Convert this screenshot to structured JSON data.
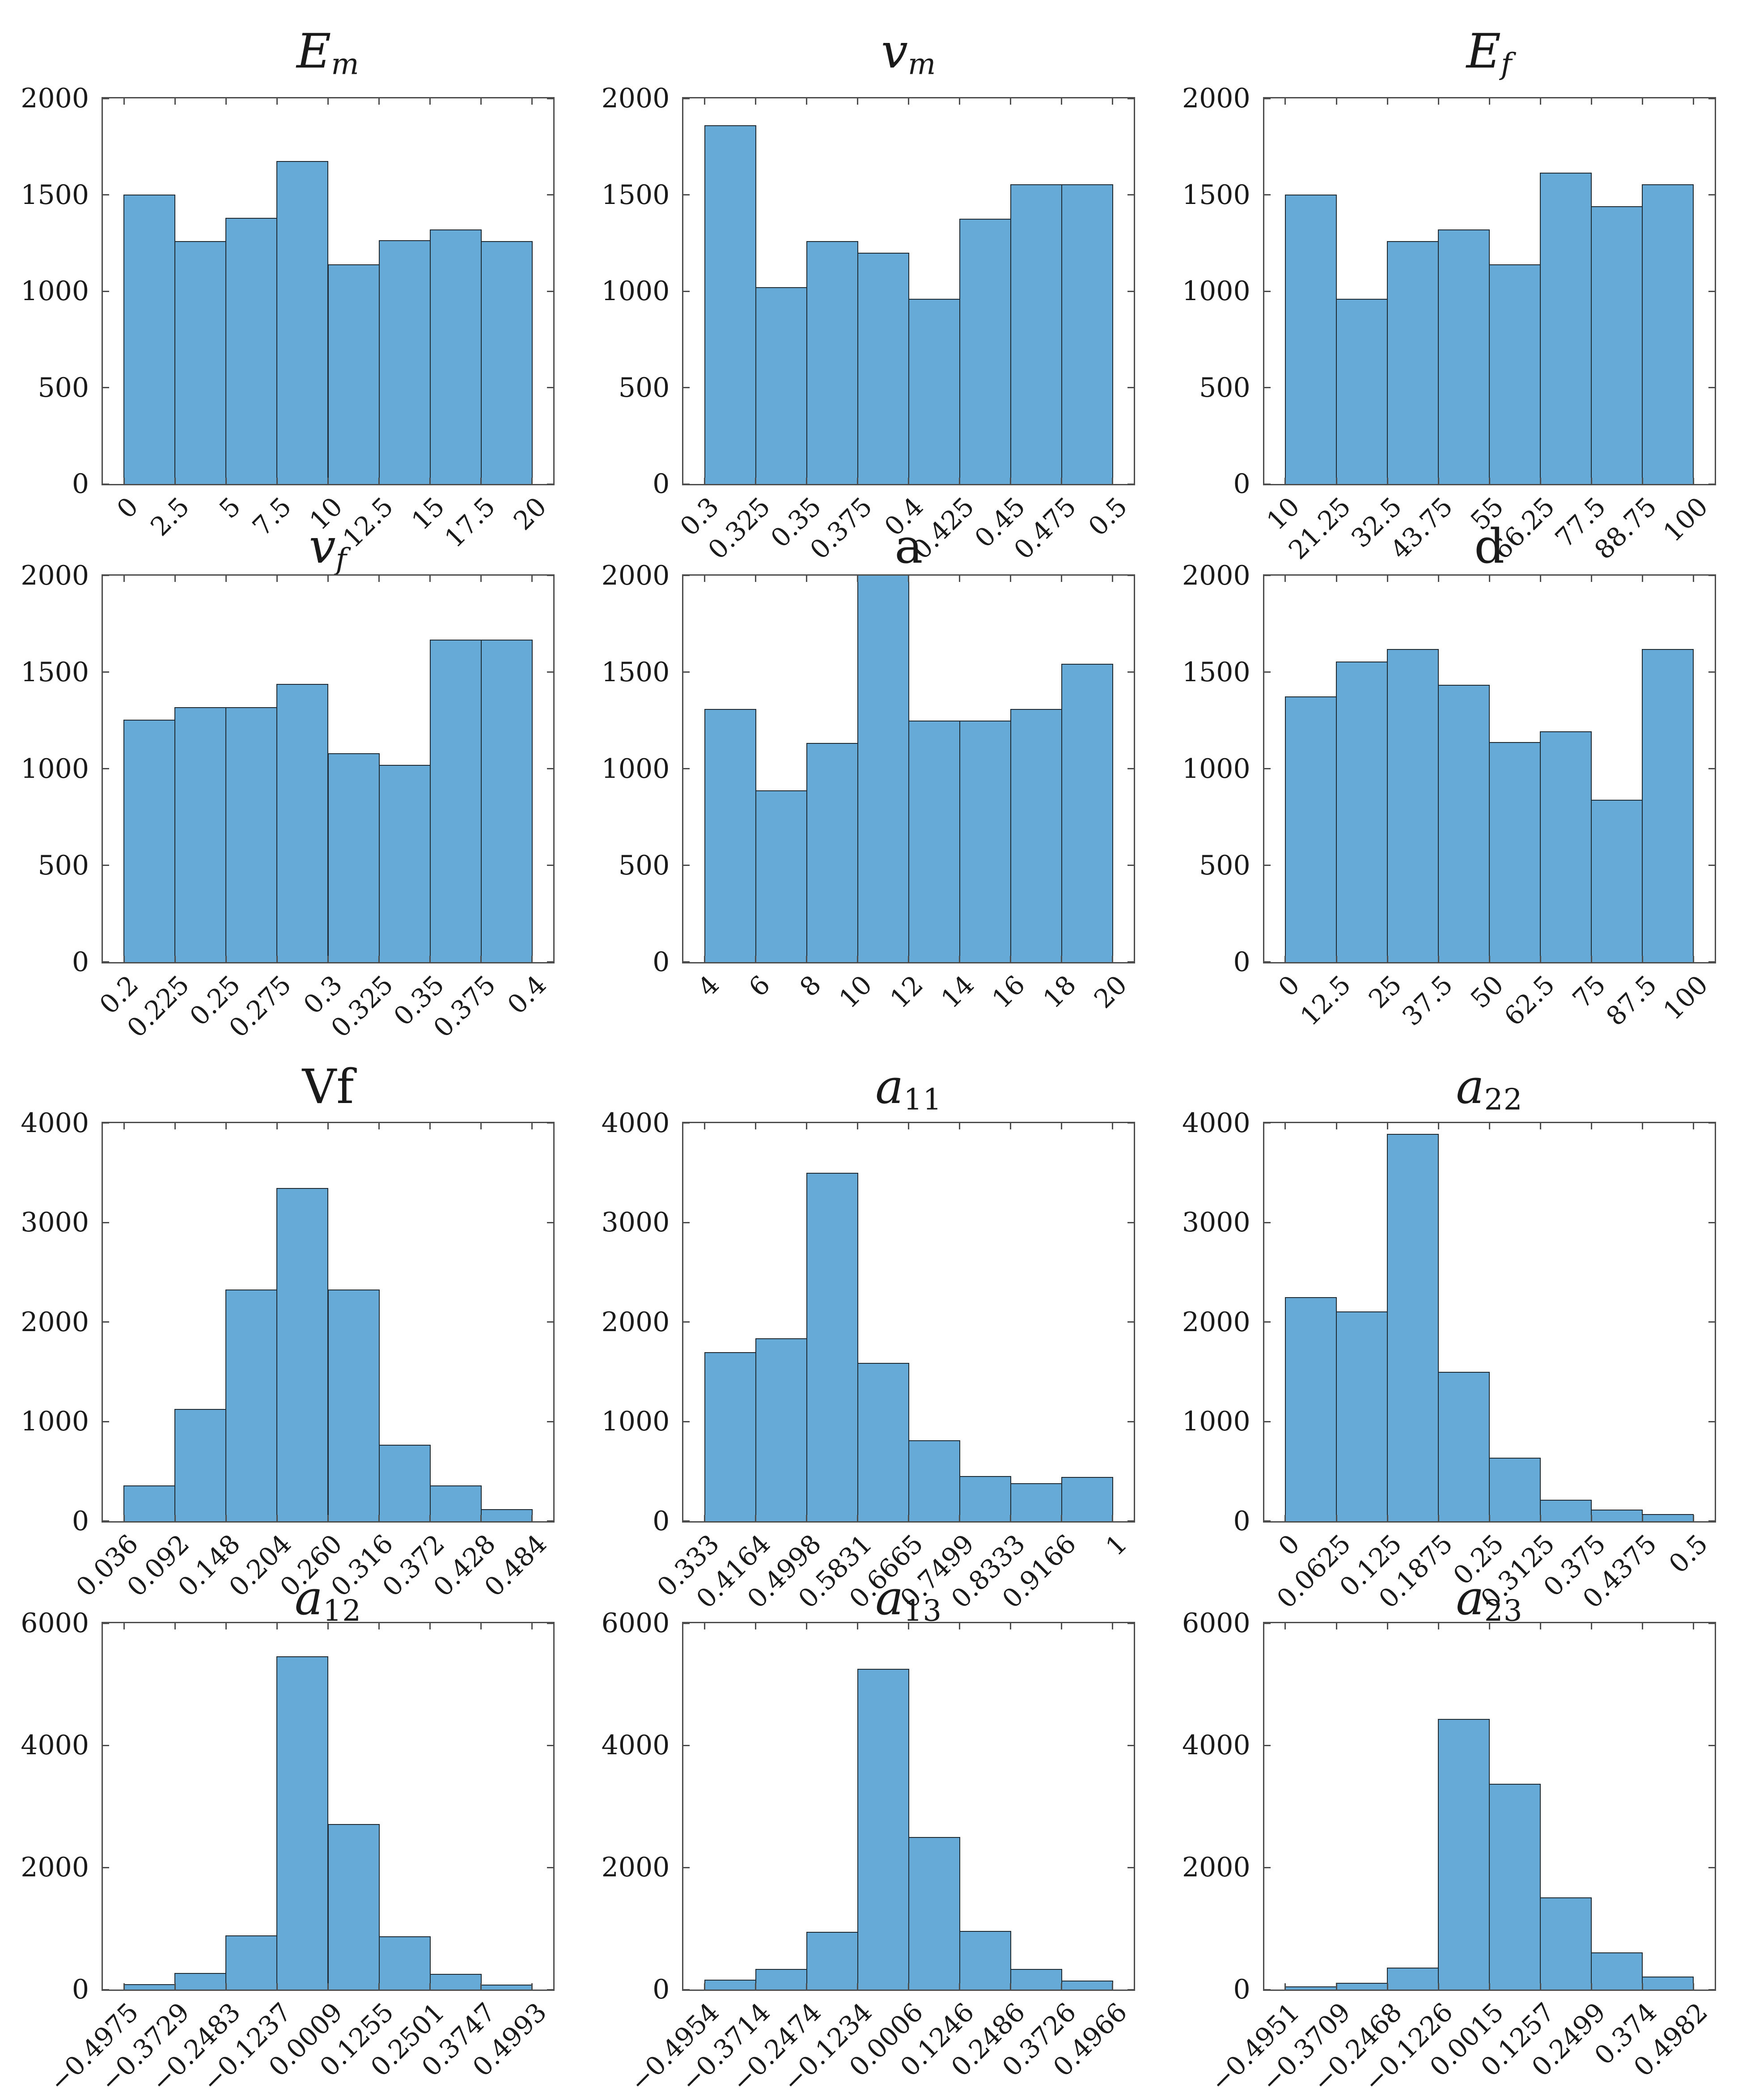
{
  "figure": {
    "description": "4x3 grid of histograms of material parameters and orientation tensor components",
    "background": "#ffffff",
    "bar_fill": "#66aad7",
    "bar_edge": "#1f2a33",
    "frame_color": "#4d4d4d",
    "text_color": "#1a1a1a"
  },
  "chart_data": [
    {
      "type": "bar",
      "title": "E_m",
      "title_base": "E",
      "title_sub": "m",
      "title_italic": true,
      "categories": [
        "0",
        "2.5",
        "5",
        "7.5",
        "10",
        "12.5",
        "15",
        "17.5",
        "20"
      ],
      "values": [
        1500,
        1260,
        1380,
        1675,
        1140,
        1265,
        1320,
        1260
      ],
      "xlabel": "",
      "ylabel": "",
      "ylim": [
        0,
        2000
      ],
      "yticks": [
        0,
        500,
        1000,
        1500,
        2000
      ],
      "grid": false,
      "legend": "none"
    },
    {
      "type": "bar",
      "title": "v_m",
      "title_base": "v",
      "title_sub": "m",
      "title_italic": true,
      "categories": [
        "0.3",
        "0.325",
        "0.35",
        "0.375",
        "0.4",
        "0.425",
        "0.45",
        "0.475",
        "0.5"
      ],
      "values": [
        1860,
        1020,
        1260,
        1200,
        960,
        1375,
        1555,
        1555
      ],
      "xlabel": "",
      "ylabel": "",
      "ylim": [
        0,
        2000
      ],
      "yticks": [
        0,
        500,
        1000,
        1500,
        2000
      ],
      "grid": false,
      "legend": "none"
    },
    {
      "type": "bar",
      "title": "E_f",
      "title_base": "E",
      "title_sub": "f",
      "title_italic": true,
      "categories": [
        "10",
        "21.25",
        "32.5",
        "43.75",
        "55",
        "66.25",
        "77.5",
        "88.75",
        "100"
      ],
      "values": [
        1500,
        960,
        1260,
        1320,
        1140,
        1615,
        1440,
        1555
      ],
      "xlabel": "",
      "ylabel": "",
      "ylim": [
        0,
        2000
      ],
      "yticks": [
        0,
        500,
        1000,
        1500,
        2000
      ],
      "grid": false,
      "legend": "none"
    },
    {
      "type": "bar",
      "title": "v_f",
      "title_base": "v",
      "title_sub": "f",
      "title_italic": true,
      "categories": [
        "0.2",
        "0.225",
        "0.25",
        "0.275",
        "0.3",
        "0.325",
        "0.35",
        "0.375",
        "0.4"
      ],
      "values": [
        1255,
        1320,
        1320,
        1440,
        1080,
        1020,
        1670,
        1670
      ],
      "xlabel": "",
      "ylabel": "",
      "ylim": [
        0,
        2000
      ],
      "yticks": [
        0,
        500,
        1000,
        1500,
        2000
      ],
      "grid": false,
      "legend": "none"
    },
    {
      "type": "bar",
      "title": "a",
      "title_base": "a",
      "title_sub": "",
      "title_italic": false,
      "categories": [
        "4",
        "6",
        "8",
        "10",
        "12",
        "14",
        "16",
        "18",
        "20"
      ],
      "values": [
        1310,
        890,
        1135,
        2020,
        1250,
        1250,
        1310,
        1545
      ],
      "xlabel": "",
      "ylabel": "",
      "ylim": [
        0,
        2000
      ],
      "yticks": [
        0,
        500,
        1000,
        1500,
        2000
      ],
      "grid": false,
      "legend": "none",
      "note": "fourth bar clipped at axis top"
    },
    {
      "type": "bar",
      "title": "d",
      "title_base": "d",
      "title_sub": "",
      "title_italic": false,
      "categories": [
        "0",
        "12.5",
        "25",
        "37.5",
        "50",
        "62.5",
        "75",
        "87.5",
        "100"
      ],
      "values": [
        1375,
        1555,
        1620,
        1435,
        1140,
        1195,
        840,
        1620
      ],
      "xlabel": "",
      "ylabel": "",
      "ylim": [
        0,
        2000
      ],
      "yticks": [
        0,
        500,
        1000,
        1500,
        2000
      ],
      "grid": false,
      "legend": "none"
    },
    {
      "type": "bar",
      "title": "Vf",
      "title_base": "Vf",
      "title_sub": "",
      "title_italic": false,
      "categories": [
        "0.036",
        "0.092",
        "0.148",
        "0.204",
        "0.260",
        "0.316",
        "0.372",
        "0.428",
        "0.484"
      ],
      "values": [
        360,
        1130,
        2330,
        3350,
        2330,
        770,
        360,
        120
      ],
      "xlabel": "",
      "ylabel": "",
      "ylim": [
        0,
        4000
      ],
      "yticks": [
        0,
        1000,
        2000,
        3000,
        4000
      ],
      "grid": false,
      "legend": "none"
    },
    {
      "type": "bar",
      "title": "a_11",
      "title_base": "a",
      "title_sub": "11",
      "title_italic": true,
      "categories": [
        "0.333",
        "0.4164",
        "0.4998",
        "0.5831",
        "0.6665",
        "0.7499",
        "0.8333",
        "0.9166",
        "1"
      ],
      "values": [
        1700,
        1840,
        3500,
        1590,
        815,
        455,
        380,
        445
      ],
      "xlabel": "",
      "ylabel": "",
      "ylim": [
        0,
        4000
      ],
      "yticks": [
        0,
        1000,
        2000,
        3000,
        4000
      ],
      "grid": false,
      "legend": "none"
    },
    {
      "type": "bar",
      "title": "a_22",
      "title_base": "a",
      "title_sub": "22",
      "title_italic": true,
      "categories": [
        "0",
        "0.0625",
        "0.125",
        "0.1875",
        "0.25",
        "0.3125",
        "0.375",
        "0.4375",
        "0.5"
      ],
      "values": [
        2250,
        2110,
        3890,
        1500,
        640,
        215,
        115,
        70
      ],
      "xlabel": "",
      "ylabel": "",
      "ylim": [
        0,
        4000
      ],
      "yticks": [
        0,
        1000,
        2000,
        3000,
        4000
      ],
      "grid": false,
      "legend": "none"
    },
    {
      "type": "bar",
      "title": "a_12",
      "title_base": "a",
      "title_sub": "12",
      "title_italic": true,
      "categories": [
        "−0.4975",
        "−0.3729",
        "−0.2483",
        "−0.1237",
        "0.0009",
        "0.1255",
        "0.2501",
        "0.3747",
        "0.4993"
      ],
      "values": [
        90,
        270,
        890,
        5460,
        2710,
        870,
        260,
        80
      ],
      "xlabel": "",
      "ylabel": "",
      "ylim": [
        0,
        6000
      ],
      "yticks": [
        0,
        2000,
        4000,
        6000
      ],
      "grid": false,
      "legend": "none"
    },
    {
      "type": "bar",
      "title": "a_13",
      "title_base": "a",
      "title_sub": "13",
      "title_italic": true,
      "categories": [
        "−0.4954",
        "−0.3714",
        "−0.2474",
        "−0.1234",
        "0.0006",
        "0.1246",
        "0.2486",
        "0.3726",
        "0.4966"
      ],
      "values": [
        160,
        335,
        945,
        5250,
        2495,
        960,
        335,
        150
      ],
      "xlabel": "",
      "ylabel": "",
      "ylim": [
        0,
        6000
      ],
      "yticks": [
        0,
        2000,
        4000,
        6000
      ],
      "grid": false,
      "legend": "none"
    },
    {
      "type": "bar",
      "title": "a_23",
      "title_base": "a",
      "title_sub": "23",
      "title_italic": true,
      "categories": [
        "−0.4951",
        "−0.3709",
        "−0.2468",
        "−0.1226",
        "0.0015",
        "0.1257",
        "0.2499",
        "0.374",
        "0.4982"
      ],
      "values": [
        50,
        110,
        360,
        4430,
        3370,
        1510,
        605,
        210
      ],
      "xlabel": "",
      "ylabel": "",
      "ylim": [
        0,
        6000
      ],
      "yticks": [
        0,
        2000,
        4000,
        6000
      ],
      "grid": false,
      "legend": "none"
    }
  ]
}
